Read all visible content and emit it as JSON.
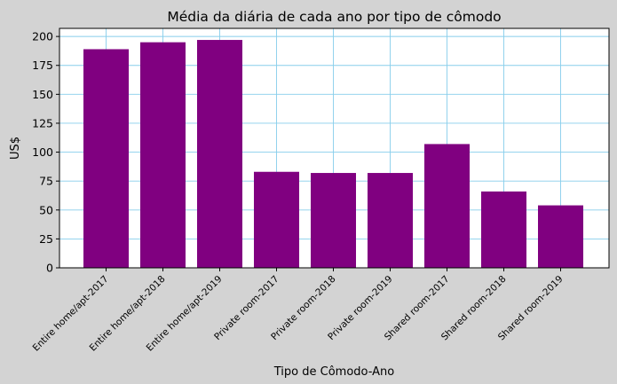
{
  "chart_data": {
    "type": "bar",
    "title": "Média da diária de cada ano por tipo de cômodo",
    "xlabel": "Tipo de Cômodo-Ano",
    "ylabel": "US$",
    "categories": [
      "Entire home/apt-2017",
      "Entire home/apt-2018",
      "Entire home/apt-2019",
      "Private room-2017",
      "Private room-2018",
      "Private room-2019",
      "Shared room-2017",
      "Shared room-2018",
      "Shared room-2019"
    ],
    "values": [
      189,
      195,
      197,
      83,
      82,
      82,
      107,
      66,
      54
    ],
    "ylim": [
      0,
      207
    ],
    "yticks": [
      0,
      25,
      50,
      75,
      100,
      125,
      150,
      175,
      200
    ],
    "grid": true,
    "bar_color": "#800080",
    "grid_color": "#87ceeb",
    "background_color": "#d3d3d3",
    "plot_background": "#ffffff"
  }
}
